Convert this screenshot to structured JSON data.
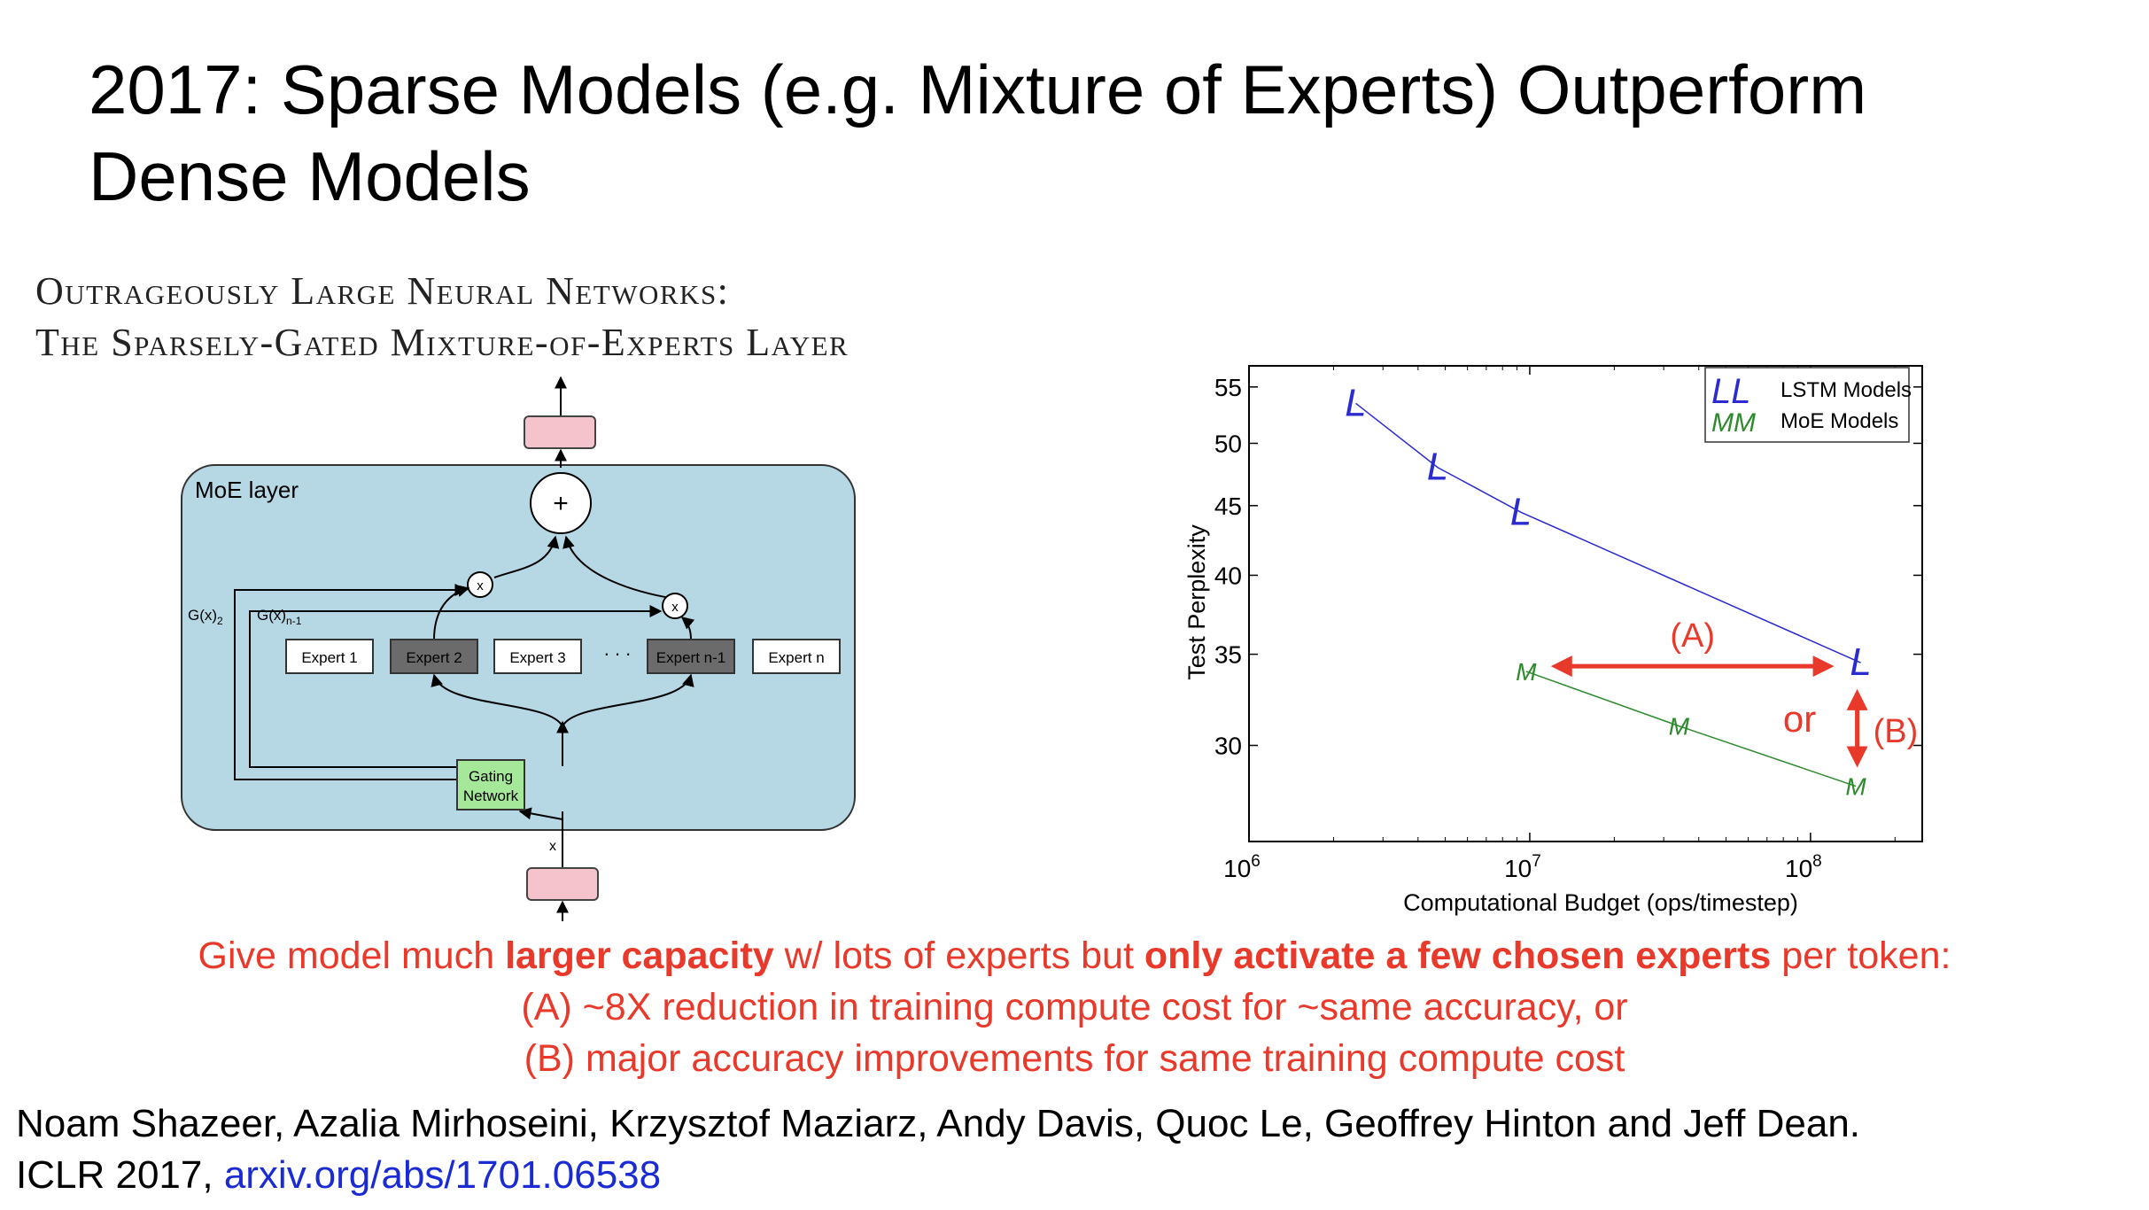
{
  "slide": {
    "title_line1": "2017: Sparse Models (e.g. Mixture of Experts) Outperform",
    "title_line2": "Dense Models"
  },
  "paper_title": {
    "line1": "Outrageously Large Neural Networks:",
    "line2": "The Sparsely-Gated Mixture-of-Experts Layer"
  },
  "diagram": {
    "layer_label": "MoE layer",
    "plus": "+",
    "mult": "x",
    "gate_left": "G(x)",
    "gate_left_sub": "2",
    "gate_right": "G(x)",
    "gate_right_sub": "n-1",
    "experts": [
      "Expert 1",
      "Expert 2",
      "Expert 3",
      "Expert n-1",
      "Expert n"
    ],
    "ellipsis": ". . .",
    "gating_line1": "Gating",
    "gating_line2": "Network",
    "input_label": "x",
    "colors": {
      "layer_bg": "#b5d8e4",
      "io_box": "#f4c3cc",
      "gating": "#a6e89a",
      "expert_active": "#6b6b6b"
    }
  },
  "chart_data": {
    "type": "line",
    "xscale": "log",
    "xlabel": "Computational Budget (ops/timestep)",
    "ylabel": "Test Perplexity",
    "xlim": [
      1000000,
      250000000
    ],
    "ylim": [
      25.5,
      57
    ],
    "xticks": [
      {
        "value": 1000000,
        "base": "10",
        "exp": "6"
      },
      {
        "value": 10000000,
        "base": "10",
        "exp": "7"
      },
      {
        "value": 100000000,
        "base": "10",
        "exp": "8"
      }
    ],
    "yticks": [
      30,
      35,
      40,
      45,
      50,
      55
    ],
    "series": [
      {
        "name": "LSTM Models",
        "marker": "L",
        "legend_marker": "LL",
        "color": "#2b2bd0",
        "x": [
          2400000,
          4700000,
          9300000,
          151000000
        ],
        "y": [
          53.5,
          48.0,
          44.5,
          34.5
        ]
      },
      {
        "name": "MoE Models",
        "marker": "M",
        "legend_marker": "MM",
        "color": "#2d8a2d",
        "x": [
          9700000,
          34000000,
          145000000
        ],
        "y": [
          34.0,
          31.0,
          28.0
        ]
      }
    ],
    "annotations": {
      "a_label": "(A)",
      "or_label": "or",
      "b_label": "(B)",
      "color": "#e8392b"
    }
  },
  "caption": {
    "l1_pre": "Give model much ",
    "l1_b1": "larger capacity",
    "l1_mid": " w/ lots of experts but ",
    "l1_b2": "only activate a few chosen experts",
    "l1_post": " per token:",
    "line2": "(A) ~8X reduction in training compute cost for ~same accuracy, or",
    "line3": "(B) major accuracy improvements for same training compute cost"
  },
  "citation": {
    "authors": "Noam Shazeer, Azalia Mirhoseini, Krzysztof Maziarz, Andy Davis, Quoc Le, Geoffrey Hinton and Jeff Dean.",
    "venue": "ICLR 2017, ",
    "link": "arxiv.org/abs/1701.06538"
  }
}
